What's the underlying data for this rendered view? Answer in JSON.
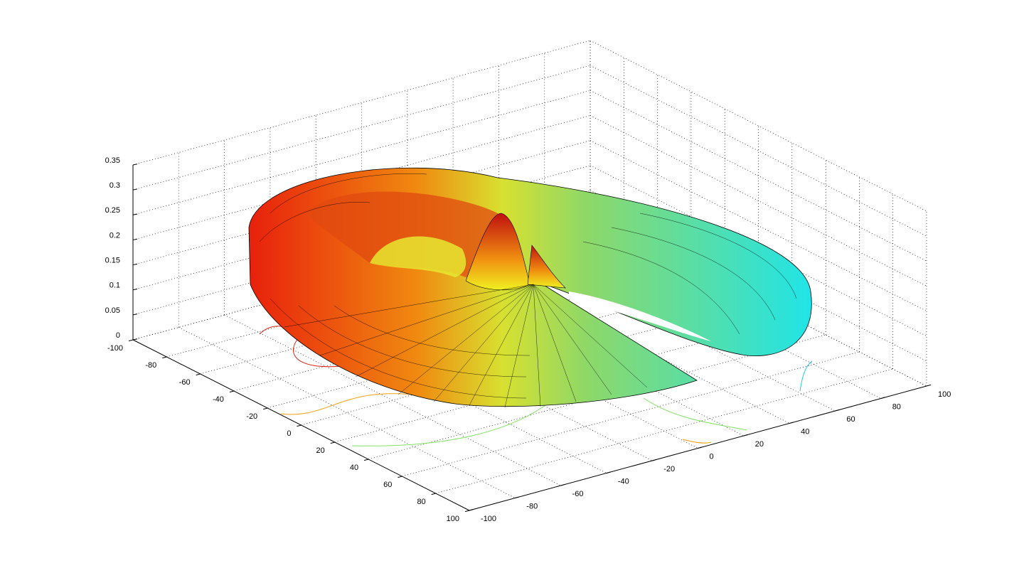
{
  "chart_data": {
    "type": "surface",
    "xlim": [
      -100,
      100
    ],
    "xticks": [
      -100,
      -80,
      -60,
      -40,
      -20,
      0,
      20,
      40,
      60,
      80,
      100
    ],
    "ylim": [
      -100,
      100
    ],
    "yticks": [
      -100,
      -80,
      -60,
      -40,
      -20,
      0,
      20,
      40,
      60,
      80,
      100
    ],
    "zlim": [
      0,
      0.35
    ],
    "zticks": [
      0,
      0.05,
      0.1,
      0.15,
      0.2,
      0.25,
      0.3,
      0.35
    ],
    "grid": true
  }
}
